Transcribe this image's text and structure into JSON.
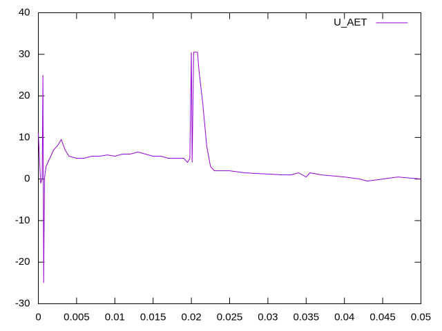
{
  "chart_data": {
    "type": "line",
    "x": [
      0,
      0.0003,
      0.0005,
      0.0006,
      0.0007,
      0.0008,
      0.001,
      0.0015,
      0.002,
      0.0025,
      0.003,
      0.0035,
      0.004,
      0.005,
      0.006,
      0.007,
      0.008,
      0.009,
      0.01,
      0.011,
      0.012,
      0.013,
      0.014,
      0.015,
      0.016,
      0.017,
      0.018,
      0.019,
      0.0195,
      0.0198,
      0.02,
      0.0201,
      0.0203,
      0.0205,
      0.0208,
      0.021,
      0.0215,
      0.022,
      0.0225,
      0.023,
      0.025,
      0.027,
      0.03,
      0.032,
      0.033,
      0.034,
      0.035,
      0.0355,
      0.037,
      0.04,
      0.042,
      0.043,
      0.045,
      0.047,
      0.05
    ],
    "series": [
      {
        "name": "U_AET",
        "color": "#9400d3",
        "values": [
          11,
          -1,
          0,
          25,
          -25,
          0,
          3,
          5,
          7,
          8,
          9.5,
          7,
          5.5,
          5,
          5,
          5.5,
          5.5,
          5.8,
          5.5,
          6,
          6,
          6.5,
          6,
          5.5,
          5.5,
          5,
          5,
          5,
          4,
          5,
          30.5,
          4,
          30.5,
          30.5,
          30.5,
          26,
          18,
          8,
          3,
          2,
          2,
          1.5,
          1.2,
          1,
          1,
          1.5,
          0.5,
          1.5,
          1,
          0.5,
          0,
          -0.5,
          0,
          0.5,
          0
        ]
      }
    ],
    "xlim": [
      0,
      0.05
    ],
    "xticks": [
      0,
      0.005,
      0.01,
      0.015,
      0.02,
      0.025,
      0.03,
      0.035,
      0.04,
      0.045,
      0.05
    ],
    "ylim": [
      -30,
      40
    ],
    "yticks": [
      -30,
      -20,
      -10,
      0,
      10,
      20,
      30,
      40
    ],
    "legend": "top-right"
  }
}
